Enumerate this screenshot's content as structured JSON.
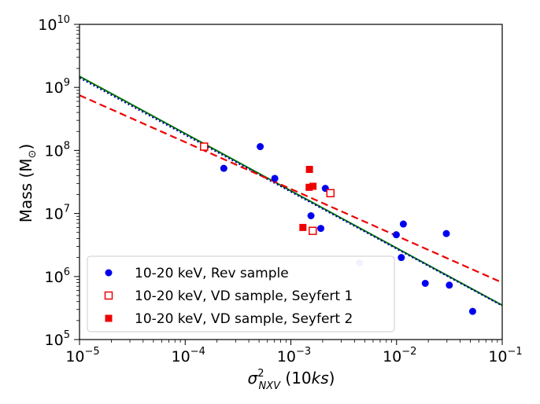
{
  "chart_data": {
    "type": "scatter",
    "xscale": "log",
    "yscale": "log",
    "xlim": [
      1e-05,
      0.1
    ],
    "ylim": [
      100000,
      10000000000
    ],
    "xlabel": {
      "sigma": "σ",
      "sup": "2",
      "sub": "NXV",
      "open": " (10",
      "italic": "ks",
      "close": ")"
    },
    "ylabel": {
      "main": "Mass (M",
      "sub": "⊙",
      "close": ")"
    },
    "x_ticks": [
      {
        "base": "10",
        "exp": "−5",
        "value": 1e-05
      },
      {
        "base": "10",
        "exp": "−4",
        "value": 0.0001
      },
      {
        "base": "10",
        "exp": "−3",
        "value": 0.001
      },
      {
        "base": "10",
        "exp": "−2",
        "value": 0.01
      },
      {
        "base": "10",
        "exp": "−1",
        "value": 0.1
      }
    ],
    "y_ticks": [
      {
        "base": "10",
        "exp": "5",
        "value": 100000.0
      },
      {
        "base": "10",
        "exp": "6",
        "value": 1000000.0
      },
      {
        "base": "10",
        "exp": "7",
        "value": 10000000.0
      },
      {
        "base": "10",
        "exp": "8",
        "value": 100000000.0
      },
      {
        "base": "10",
        "exp": "9",
        "value": 1000000000.0
      },
      {
        "base": "10",
        "exp": "10",
        "value": 10000000000.0
      }
    ],
    "series": [
      {
        "name": "10-20 keV, Rev sample",
        "marker": "circle",
        "color": "#0000ee",
        "points": [
          [
            0.000232,
            52000000
          ],
          [
            0.000513,
            115000000
          ],
          [
            0.000705,
            36000000
          ],
          [
            0.00155,
            9200000
          ],
          [
            0.00192,
            5800000
          ],
          [
            0.00212,
            25000000
          ],
          [
            0.00447,
            1650000
          ],
          [
            0.00995,
            4600000
          ],
          [
            0.0111,
            2000000
          ],
          [
            0.0116,
            6800000
          ],
          [
            0.0187,
            780000
          ],
          [
            0.0296,
            4800000
          ],
          [
            0.0316,
            730000
          ],
          [
            0.0525,
            280000
          ]
        ]
      },
      {
        "name": "10-20 keV, VD sample, Seyfert 1",
        "marker": "open-square",
        "color": "#ee0000",
        "points": [
          [
            0.000151,
            115000000
          ],
          [
            0.00161,
            5300000
          ],
          [
            0.00237,
            21000000
          ]
        ]
      },
      {
        "name": "10-20 keV, VD sample, Seyfert 2",
        "marker": "filled-square",
        "color": "#ee0000",
        "points": [
          [
            0.0013,
            6000000
          ],
          [
            0.0015,
            50000000
          ],
          [
            0.00149,
            26000000
          ],
          [
            0.00162,
            27000000
          ]
        ]
      }
    ],
    "fit_lines": [
      {
        "name": "green-fit",
        "color": "#007700",
        "style": "solid",
        "points": [
          [
            1e-05,
            1500000000
          ],
          [
            0.1,
            350000
          ]
        ]
      },
      {
        "name": "blue-dotted-fit",
        "color": "#0000aa",
        "style": "dotted",
        "points": [
          [
            1e-05,
            1420000000
          ],
          [
            0.1,
            345000
          ]
        ]
      },
      {
        "name": "red-dashed-fit",
        "color": "#ee0000",
        "style": "dashed",
        "points": [
          [
            1e-05,
            750000000
          ],
          [
            0.1,
            800000
          ]
        ]
      }
    ],
    "legend_position": "bottom-left"
  }
}
